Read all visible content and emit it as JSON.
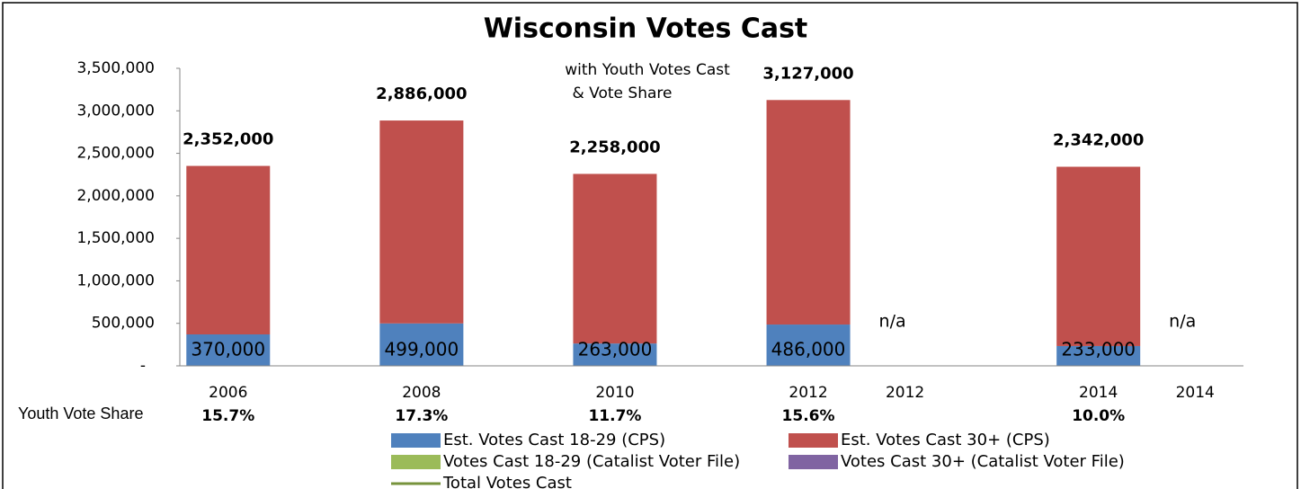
{
  "chart_data": {
    "type": "bar",
    "stacked": true,
    "title": "Wisconsin Votes Cast",
    "subtitle": [
      "with Youth Votes Cast",
      "& Vote Share"
    ],
    "categories": [
      "2006",
      null,
      "2008",
      null,
      "2010",
      null,
      "2012",
      "2012",
      null,
      "2014",
      "2014"
    ],
    "series": [
      {
        "name": "Est. Votes Cast 18-29 (CPS)",
        "color": "#4f81bd",
        "kind": "bar",
        "values": [
          370000,
          null,
          499000,
          null,
          263000,
          null,
          486000,
          null,
          null,
          233000,
          null
        ],
        "value_labels": [
          "370,000",
          null,
          "499,000",
          null,
          "263,000",
          null,
          "486,000",
          null,
          null,
          "233,000",
          null
        ]
      },
      {
        "name": "Est. Votes Cast 30+ (CPS)",
        "color": "#c0504d",
        "kind": "bar",
        "values": [
          1982000,
          null,
          2387000,
          null,
          1995000,
          null,
          2641000,
          null,
          null,
          2109000,
          null
        ]
      },
      {
        "name": "Votes Cast 18-29 (Catalist Voter File)",
        "color": "#9bbb59",
        "kind": "bar",
        "values": [
          null,
          null,
          null,
          null,
          null,
          null,
          null,
          null,
          null,
          null,
          null
        ],
        "value_labels": [
          null,
          null,
          null,
          null,
          null,
          null,
          null,
          "n/a",
          null,
          null,
          "n/a"
        ]
      },
      {
        "name": "Votes Cast 30+ (Catalist Voter File)",
        "color": "#8064a2",
        "kind": "bar",
        "values": [
          null,
          null,
          null,
          null,
          null,
          null,
          null,
          null,
          null,
          null,
          null
        ]
      },
      {
        "name": "Total Votes Cast",
        "color": "#77933c",
        "kind": "line",
        "values": [
          2352000,
          null,
          2886000,
          null,
          2258000,
          null,
          3127000,
          null,
          null,
          2342000,
          null
        ],
        "value_labels": [
          "2,352,000",
          null,
          "2,886,000",
          null,
          "2,258,000",
          null,
          "3,127,000",
          null,
          null,
          "2,342,000",
          null
        ]
      }
    ],
    "youth_vote_share": {
      "label": "Youth Vote Share",
      "color": "#4f81bd",
      "values": [
        15.7,
        null,
        17.3,
        null,
        11.7,
        null,
        15.6,
        null,
        null,
        10.0,
        null
      ],
      "value_labels": [
        "15.7%",
        null,
        "17.3%",
        null,
        "11.7%",
        null,
        "15.6%",
        null,
        null,
        "10.0%",
        null
      ]
    },
    "ylim": [
      0,
      3500000
    ],
    "yticks": [
      {
        "value": 0,
        "label": "-"
      },
      {
        "value": 500000,
        "label": "500,000"
      },
      {
        "value": 1000000,
        "label": "1,000,000"
      },
      {
        "value": 1500000,
        "label": "1,500,000"
      },
      {
        "value": 2000000,
        "label": "2,000,000"
      },
      {
        "value": 2500000,
        "label": "2,500,000"
      },
      {
        "value": 3000000,
        "label": "3,000,000"
      },
      {
        "value": 3500000,
        "label": "3,500,000"
      }
    ],
    "grid": false
  }
}
